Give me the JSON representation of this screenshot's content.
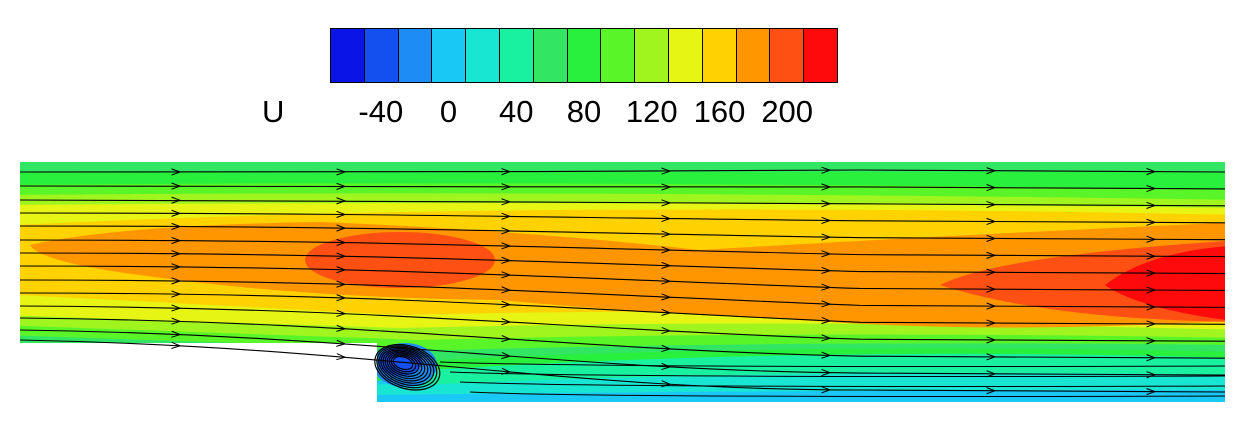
{
  "chart_data": {
    "type": "heatmap",
    "variable": "U",
    "legend": {
      "levels": [
        -60,
        -40,
        -20,
        0,
        20,
        40,
        60,
        80,
        100,
        120,
        140,
        160,
        180,
        200,
        220
      ],
      "tick_labels": [
        "-40",
        "0",
        "40",
        "80",
        "120",
        "160",
        "200"
      ],
      "tick_values": [
        -40,
        0,
        40,
        80,
        120,
        160,
        200
      ],
      "colors": [
        "#0a14e6",
        "#1450f0",
        "#1e8cf5",
        "#19c8f5",
        "#19e6d2",
        "#19f0a0",
        "#32e664",
        "#28f03c",
        "#5af528",
        "#a0f51e",
        "#e6f514",
        "#ffd200",
        "#ff9600",
        "#ff5014",
        "#ff0a0a"
      ],
      "placement": "top-center"
    },
    "domain": "backward-facing step channel flow with streamlines and recirculation vortex behind the step",
    "grid": false
  }
}
